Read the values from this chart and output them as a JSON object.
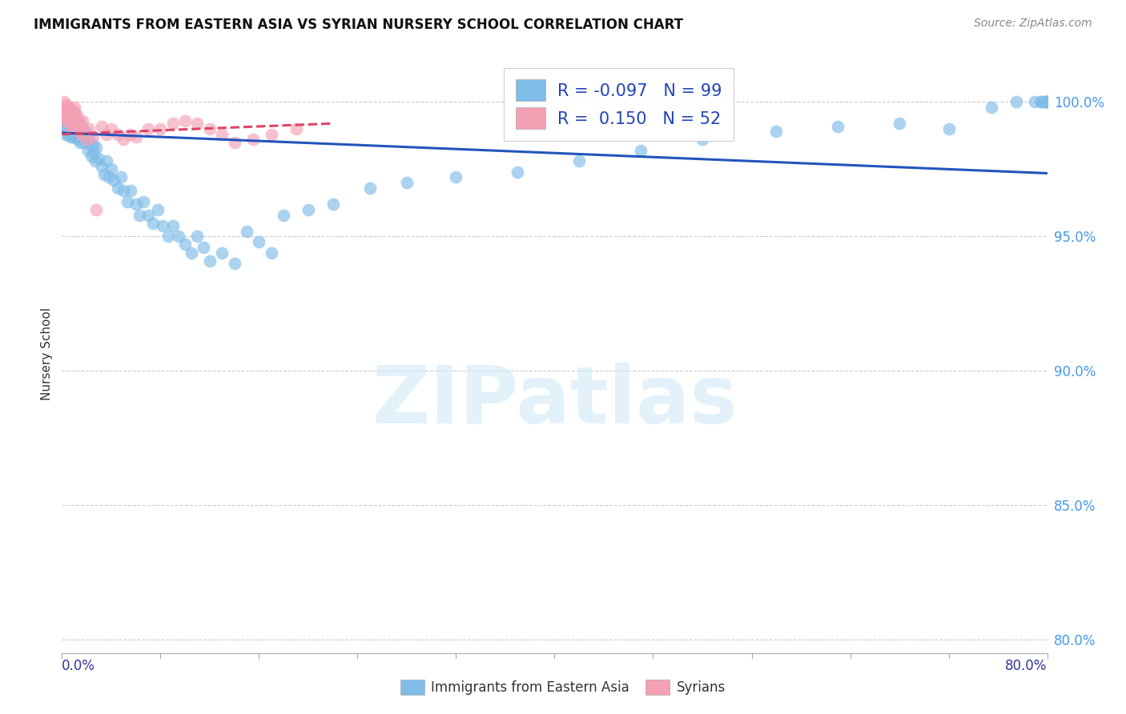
{
  "title": "IMMIGRANTS FROM EASTERN ASIA VS SYRIAN NURSERY SCHOOL CORRELATION CHART",
  "source": "Source: ZipAtlas.com",
  "ylabel": "Nursery School",
  "watermark": "ZIPatlas",
  "legend_blue_label": "Immigrants from Eastern Asia",
  "legend_pink_label": "Syrians",
  "legend_r_blue": "-0.097",
  "legend_n_blue": "99",
  "legend_r_pink": "0.150",
  "legend_n_pink": "52",
  "blue_color": "#7FBCE8",
  "pink_color": "#F4A0B5",
  "trend_blue_color": "#2255BB",
  "trend_pink_color": "#DD4466",
  "ytick_labels": [
    "80.0%",
    "85.0%",
    "90.0%",
    "95.0%",
    "100.0%"
  ],
  "ytick_values": [
    0.8,
    0.85,
    0.9,
    0.95,
    1.0
  ],
  "xlim": [
    0.0,
    0.8
  ],
  "ylim": [
    0.795,
    1.018
  ],
  "blue_x": [
    0.001,
    0.002,
    0.002,
    0.003,
    0.003,
    0.004,
    0.004,
    0.005,
    0.005,
    0.006,
    0.006,
    0.007,
    0.007,
    0.008,
    0.008,
    0.009,
    0.009,
    0.01,
    0.01,
    0.011,
    0.011,
    0.012,
    0.012,
    0.013,
    0.013,
    0.014,
    0.015,
    0.015,
    0.016,
    0.017,
    0.018,
    0.019,
    0.02,
    0.021,
    0.022,
    0.023,
    0.024,
    0.025,
    0.026,
    0.027,
    0.028,
    0.03,
    0.032,
    0.034,
    0.036,
    0.038,
    0.04,
    0.042,
    0.045,
    0.048,
    0.05,
    0.053,
    0.056,
    0.06,
    0.063,
    0.066,
    0.07,
    0.074,
    0.078,
    0.082,
    0.086,
    0.09,
    0.095,
    0.1,
    0.105,
    0.11,
    0.115,
    0.12,
    0.13,
    0.14,
    0.15,
    0.16,
    0.17,
    0.18,
    0.2,
    0.22,
    0.25,
    0.28,
    0.32,
    0.37,
    0.42,
    0.47,
    0.52,
    0.58,
    0.63,
    0.68,
    0.72,
    0.755,
    0.775,
    0.79,
    0.795,
    0.795,
    0.798,
    0.799,
    0.799,
    0.799,
    0.8,
    0.8,
    0.8
  ],
  "blue_y": [
    0.993,
    0.996,
    0.99,
    0.997,
    0.988,
    0.995,
    0.991,
    0.997,
    0.988,
    0.994,
    0.99,
    0.993,
    0.987,
    0.995,
    0.989,
    0.993,
    0.987,
    0.994,
    0.989,
    0.992,
    0.987,
    0.993,
    0.988,
    0.991,
    0.986,
    0.992,
    0.989,
    0.985,
    0.991,
    0.988,
    0.985,
    0.989,
    0.986,
    0.982,
    0.987,
    0.984,
    0.98,
    0.984,
    0.981,
    0.978,
    0.983,
    0.979,
    0.976,
    0.973,
    0.978,
    0.972,
    0.975,
    0.971,
    0.968,
    0.972,
    0.967,
    0.963,
    0.967,
    0.962,
    0.958,
    0.963,
    0.958,
    0.955,
    0.96,
    0.954,
    0.95,
    0.954,
    0.95,
    0.947,
    0.944,
    0.95,
    0.946,
    0.941,
    0.944,
    0.94,
    0.952,
    0.948,
    0.944,
    0.958,
    0.96,
    0.962,
    0.968,
    0.97,
    0.972,
    0.974,
    0.978,
    0.982,
    0.986,
    0.989,
    0.991,
    0.992,
    0.99,
    0.998,
    1.0,
    1.0,
    1.0,
    1.0,
    1.0,
    1.0,
    1.0,
    1.0,
    1.0,
    1.0,
    1.0
  ],
  "pink_x": [
    0.001,
    0.001,
    0.002,
    0.002,
    0.003,
    0.003,
    0.003,
    0.004,
    0.004,
    0.005,
    0.005,
    0.006,
    0.006,
    0.007,
    0.007,
    0.008,
    0.008,
    0.009,
    0.01,
    0.01,
    0.011,
    0.011,
    0.012,
    0.012,
    0.013,
    0.014,
    0.015,
    0.016,
    0.017,
    0.018,
    0.02,
    0.022,
    0.025,
    0.028,
    0.032,
    0.036,
    0.04,
    0.045,
    0.05,
    0.055,
    0.06,
    0.07,
    0.08,
    0.09,
    0.1,
    0.11,
    0.12,
    0.13,
    0.14,
    0.155,
    0.17,
    0.19
  ],
  "pink_y": [
    0.998,
    0.995,
    1.0,
    0.997,
    0.998,
    0.996,
    0.993,
    0.999,
    0.995,
    0.998,
    0.994,
    0.997,
    0.993,
    0.995,
    0.991,
    0.997,
    0.993,
    0.995,
    0.998,
    0.993,
    0.996,
    0.991,
    0.995,
    0.99,
    0.993,
    0.989,
    0.992,
    0.988,
    0.993,
    0.989,
    0.986,
    0.99,
    0.987,
    0.96,
    0.991,
    0.988,
    0.99,
    0.988,
    0.986,
    0.988,
    0.987,
    0.99,
    0.99,
    0.992,
    0.993,
    0.992,
    0.99,
    0.988,
    0.985,
    0.986,
    0.988,
    0.99
  ],
  "blue_trend_x": [
    0.0,
    0.8
  ],
  "blue_trend_y": [
    0.9885,
    0.9735
  ],
  "pink_trend_x": [
    0.0,
    0.22
  ],
  "pink_trend_y": [
    0.988,
    0.992
  ]
}
